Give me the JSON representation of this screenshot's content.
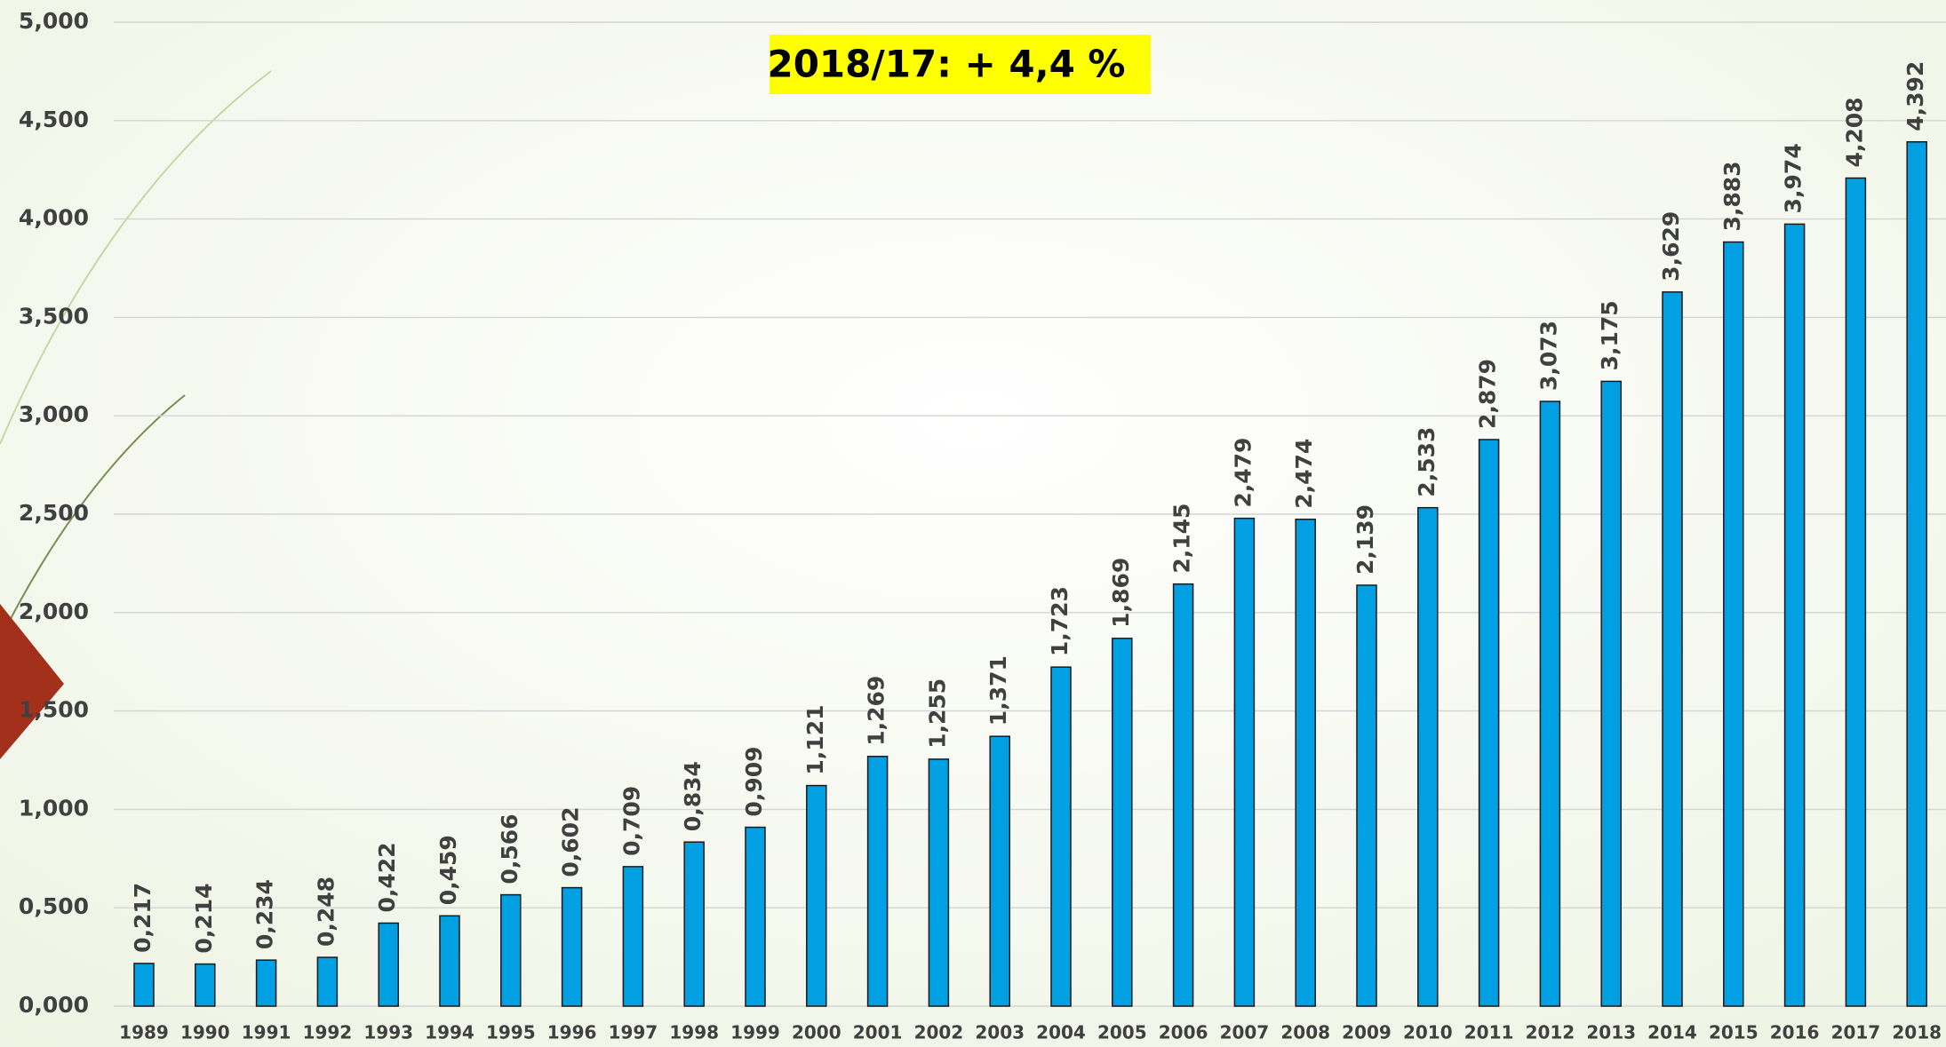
{
  "chart_data": {
    "type": "bar",
    "annotation": "2018/17: + 4,4 %",
    "categories": [
      "1989",
      "1990",
      "1991",
      "1992",
      "1993",
      "1994",
      "1995",
      "1996",
      "1997",
      "1998",
      "1999",
      "2000",
      "2001",
      "2002",
      "2003",
      "2004",
      "2005",
      "2006",
      "2007",
      "2008",
      "2009",
      "2010",
      "2011",
      "2012",
      "2013",
      "2014",
      "2015",
      "2016",
      "2017",
      "2018"
    ],
    "values": [
      0.217,
      0.214,
      0.234,
      0.248,
      0.422,
      0.459,
      0.566,
      0.602,
      0.709,
      0.834,
      0.909,
      1.121,
      1.269,
      1.255,
      1.371,
      1.723,
      1.869,
      2.145,
      2.479,
      2.474,
      2.139,
      2.533,
      2.879,
      3.073,
      3.175,
      3.629,
      3.883,
      3.974,
      4.208,
      4.392
    ],
    "value_labels": [
      "0,217",
      "0,214",
      "0,234",
      "0,248",
      "0,422",
      "0,459",
      "0,566",
      "0,602",
      "0,709",
      "0,834",
      "0,909",
      "1,121",
      "1,269",
      "1,255",
      "1,371",
      "1,723",
      "1,869",
      "2,145",
      "2,479",
      "2,474",
      "2,139",
      "2,533",
      "2,879",
      "3,073",
      "3,175",
      "3,629",
      "3,883",
      "3,974",
      "4,208",
      "4,392"
    ],
    "color": "#00a0e3",
    "ylim": [
      0,
      5
    ],
    "yticks": [
      {
        "value": 0,
        "label": "0,000"
      },
      {
        "value": 0.5,
        "label": "0,500"
      },
      {
        "value": 1,
        "label": "1,000"
      },
      {
        "value": 1.5,
        "label": "1,500"
      },
      {
        "value": 2,
        "label": "2,000"
      },
      {
        "value": 2.5,
        "label": "2,500"
      },
      {
        "value": 3,
        "label": "3,000"
      },
      {
        "value": 3.5,
        "label": "3,500"
      },
      {
        "value": 4,
        "label": "4,000"
      },
      {
        "value": 4.5,
        "label": "4,500"
      },
      {
        "value": 5,
        "label": "5,000"
      }
    ],
    "grid": true
  }
}
